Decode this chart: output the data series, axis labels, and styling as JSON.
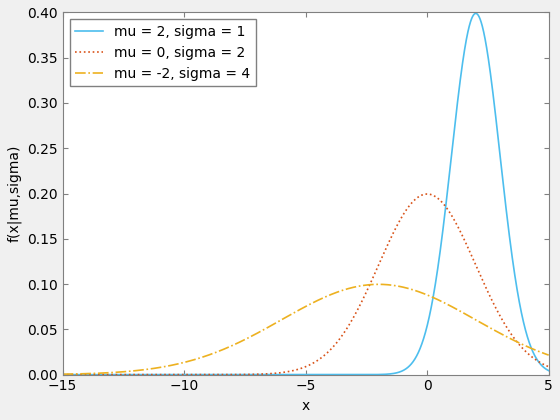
{
  "distributions": [
    {
      "mu": 2,
      "sigma": 1,
      "label": "mu = 2, sigma = 1",
      "color": "#4DBEEE",
      "linestyle": "solid",
      "linewidth": 1.2
    },
    {
      "mu": 0,
      "sigma": 2,
      "label": "mu = 0, sigma = 2",
      "color": "#D95319",
      "linestyle": "dotted",
      "linewidth": 1.2
    },
    {
      "mu": -2,
      "sigma": 4,
      "label": "mu = -2, sigma = 4",
      "color": "#EDB120",
      "linestyle": "dashdot",
      "linewidth": 1.2
    }
  ],
  "xlim": [
    -15,
    5
  ],
  "ylim": [
    0,
    0.4
  ],
  "xlabel": "x",
  "ylabel": "f(x|mu,sigma)",
  "yticks": [
    0,
    0.05,
    0.1,
    0.15,
    0.2,
    0.25,
    0.3,
    0.35,
    0.4
  ],
  "xticks": [
    -15,
    -10,
    -5,
    0,
    5
  ],
  "legend_loc": "upper left",
  "background_color": "#ffffff",
  "figure_facecolor": "#f0f0f0",
  "axes_edge_color": "#000000",
  "fontsize": 10,
  "tick_fontsize": 10
}
